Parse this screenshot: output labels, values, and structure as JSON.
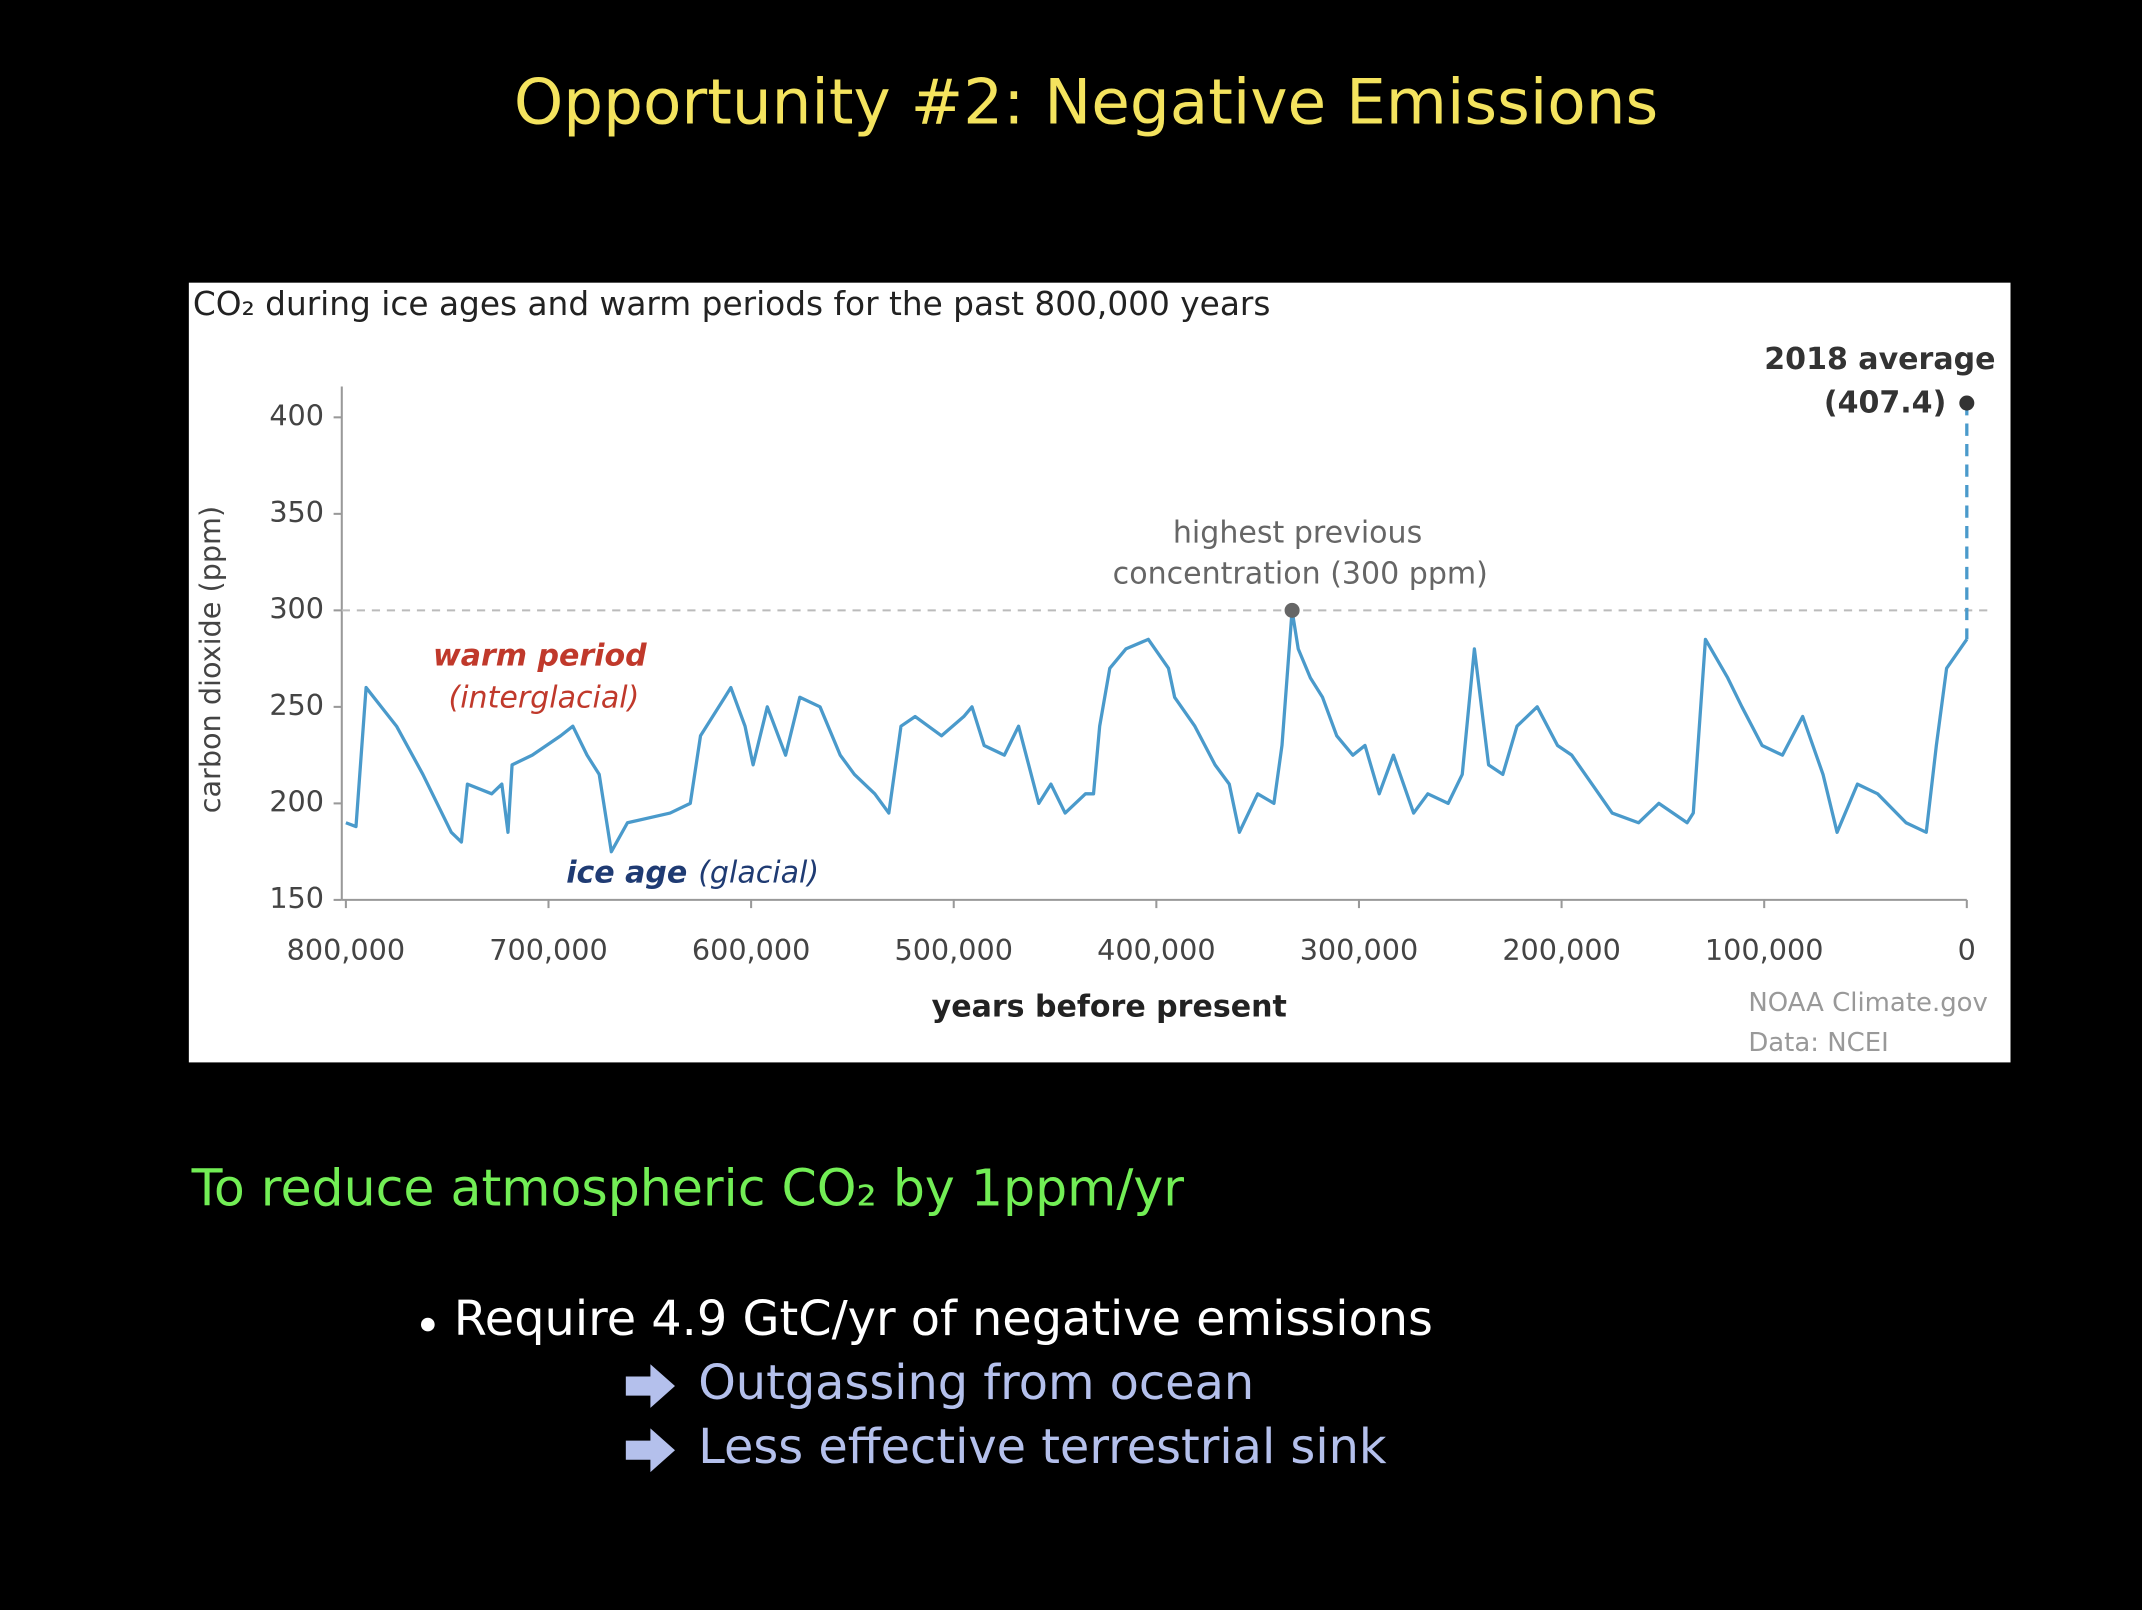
{
  "slide": {
    "title": "Opportunity #2: Negative Emissions",
    "heading": "To reduce atmospheric CO₂ by 1ppm/yr",
    "bullet": "Require 4.9 GtC/yr of negative emissions",
    "sub_bullets": [
      "Outgassing from ocean",
      "Less effective terrestrial sink"
    ]
  },
  "chart_data": {
    "type": "line",
    "title": "CO₂ during ice ages and warm periods for the past 800,000 years",
    "xlabel": "years before present",
    "ylabel": "carbon dioxide (ppm)",
    "color": "#4a9acb",
    "x": [
      800000,
      795000,
      790000,
      775000,
      762000,
      748000,
      743000,
      740000,
      728000,
      723000,
      720000,
      718000,
      708000,
      694000,
      688000,
      681000,
      675000,
      669000,
      661000,
      640000,
      630000,
      625000,
      613000,
      610000,
      603000,
      599000,
      592000,
      583000,
      576000,
      566000,
      556000,
      549000,
      539000,
      532000,
      526000,
      519000,
      506000,
      495000,
      491000,
      485000,
      475000,
      468000,
      458000,
      452000,
      445000,
      435000,
      431000,
      428000,
      423000,
      415000,
      404000,
      394000,
      391000,
      381000,
      371000,
      364000,
      359000,
      350000,
      342000,
      338000,
      333000,
      330000,
      324000,
      318000,
      311000,
      303000,
      297000,
      290000,
      283000,
      273000,
      266000,
      256000,
      249000,
      243000,
      236000,
      229000,
      222000,
      212000,
      202000,
      195000,
      185000,
      175000,
      162000,
      152000,
      138000,
      135000,
      129000,
      118000,
      111000,
      101000,
      91000,
      81000,
      71000,
      64000,
      54000,
      44000,
      30000,
      20000,
      15000,
      10000,
      0
    ],
    "values": [
      190,
      188,
      260,
      240,
      215,
      185,
      180,
      210,
      205,
      210,
      185,
      220,
      225,
      235,
      240,
      225,
      215,
      175,
      190,
      195,
      200,
      235,
      255,
      260,
      240,
      220,
      250,
      225,
      255,
      250,
      225,
      215,
      205,
      195,
      240,
      245,
      235,
      245,
      250,
      230,
      225,
      240,
      200,
      210,
      195,
      205,
      205,
      240,
      270,
      280,
      285,
      270,
      255,
      240,
      220,
      210,
      185,
      205,
      200,
      230,
      300,
      280,
      265,
      255,
      235,
      225,
      230,
      205,
      225,
      195,
      205,
      200,
      215,
      280,
      220,
      215,
      240,
      250,
      230,
      225,
      210,
      195,
      190,
      200,
      190,
      195,
      285,
      265,
      250,
      230,
      225,
      245,
      215,
      185,
      210,
      205,
      190,
      185,
      230,
      270,
      285
    ],
    "xlim": [
      800000,
      0
    ],
    "xticks": [
      {
        "value": 800000,
        "label": "800,000"
      },
      {
        "value": 700000,
        "label": "700,000"
      },
      {
        "value": 600000,
        "label": "600,000"
      },
      {
        "value": 500000,
        "label": "500,000"
      },
      {
        "value": 400000,
        "label": "400,000"
      },
      {
        "value": 300000,
        "label": "300,000"
      },
      {
        "value": 200000,
        "label": "200,000"
      },
      {
        "value": 100000,
        "label": "100,000"
      },
      0
    ],
    "ylim": [
      150,
      416
    ],
    "yticks": [
      150,
      200,
      250,
      300,
      350,
      400
    ],
    "reference_line": 300,
    "annotations": [
      {
        "lines": [
          "highest previous",
          "concentration (300 ppm)"
        ],
        "x": 333000,
        "y": 300
      },
      {
        "lines": [
          "2018 average",
          "(407.4)"
        ],
        "x": 0,
        "y": 407.4
      }
    ],
    "warm_label": [
      "warm period",
      "(interglacial)"
    ],
    "ice_label": [
      "ice age",
      "(glacial)"
    ],
    "source": [
      "NOAA Climate.gov",
      "Data: NCEI"
    ]
  }
}
